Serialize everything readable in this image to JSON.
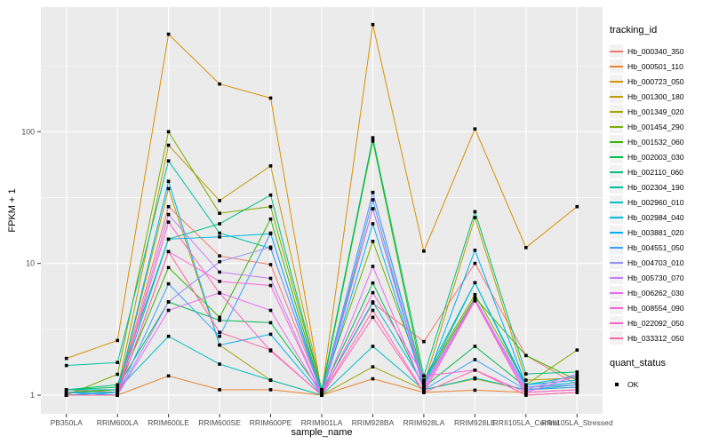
{
  "chart_data": {
    "type": "line",
    "title": "",
    "xlabel": "sample_name",
    "ylabel": "FPKM + 1",
    "yscale": "log10",
    "yticks": [
      1,
      10,
      100
    ],
    "yminor": [
      3.162,
      31.62,
      316.2
    ],
    "ylim": [
      1,
      880
    ],
    "grid": true,
    "panel_bg": "#EBEBEB",
    "grid_color": "#FFFFFF",
    "tick_label_color": "#4D4D4D",
    "tick_mark_color": "#333333",
    "point_shape": "filled-square",
    "point_color": "#000000",
    "legend_title": "tracking_id",
    "legend2_title": "quant_status",
    "legend2_items": [
      "OK"
    ],
    "x_categories": [
      "PB350LA",
      "RRIM600LA",
      "RRIM600LE",
      "RRIM600SE",
      "RRIM600PE",
      "RRIM901LA",
      "RRIM928BA",
      "RRIM928LA",
      "RRIM928LE",
      "RRII105LA_Control",
      "RRII105LA_Stressed"
    ],
    "series": [
      {
        "name": "Hb_000340_350",
        "color": "#F8766D",
        "values": [
          1.1,
          1.05,
          27.0,
          11.4,
          9.8,
          1.05,
          5.0,
          2.55,
          10.0,
          2.0,
          1.2
        ]
      },
      {
        "name": "Hb_000501_110",
        "color": "#EA8331",
        "values": [
          1.05,
          1.0,
          1.4,
          1.1,
          1.1,
          1.0,
          1.33,
          1.05,
          1.09,
          1.05,
          1.1
        ]
      },
      {
        "name": "Hb_000723_050",
        "color": "#D89000",
        "values": [
          1.9,
          2.6,
          550,
          230,
          180,
          1.05,
          650,
          12.4,
          105,
          13.2,
          27.0
        ]
      },
      {
        "name": "Hb_001300_180",
        "color": "#C09B00",
        "values": [
          1.05,
          1.1,
          79,
          30,
          55,
          1.1,
          26,
          1.2,
          22.3,
          1.3,
          1.35
        ]
      },
      {
        "name": "Hb_001349_020",
        "color": "#A3A500",
        "values": [
          1.0,
          1.05,
          37,
          2.4,
          1.3,
          1.0,
          1.64,
          1.1,
          1.33,
          1.1,
          1.15
        ]
      },
      {
        "name": "Hb_001454_290",
        "color": "#7CAE00",
        "values": [
          1.0,
          1.44,
          100,
          24,
          27,
          1.1,
          14.7,
          1.3,
          5.8,
          1.2,
          2.2
        ]
      },
      {
        "name": "Hb_001532_060",
        "color": "#39B600",
        "values": [
          1.05,
          1.1,
          9.3,
          3.9,
          21.7,
          1.05,
          85,
          1.25,
          5.5,
          2.0,
          1.3
        ]
      },
      {
        "name": "Hb_002003_030",
        "color": "#00BB4E",
        "values": [
          1.1,
          1.15,
          5.1,
          3.7,
          3.55,
          1.05,
          7.1,
          1.15,
          2.35,
          1.15,
          1.2
        ]
      },
      {
        "name": "Hb_002110_060",
        "color": "#00BF7D",
        "values": [
          1.1,
          1.2,
          15.3,
          20,
          33,
          1.1,
          90,
          1.4,
          24.7,
          1.45,
          1.5
        ]
      },
      {
        "name": "Hb_002304_190",
        "color": "#00C1A3",
        "values": [
          1.68,
          1.77,
          60,
          17,
          13,
          1.05,
          34.6,
          1.3,
          7.15,
          1.2,
          1.4
        ]
      },
      {
        "name": "Hb_002960_010",
        "color": "#00BFC4",
        "values": [
          1.1,
          1.1,
          2.8,
          1.72,
          1.3,
          1.0,
          2.35,
          1.1,
          1.35,
          1.1,
          1.2
        ]
      },
      {
        "name": "Hb_002984_040",
        "color": "#00BAE0",
        "values": [
          1.05,
          1.05,
          15.3,
          15.9,
          16.8,
          1.05,
          5.1,
          1.2,
          7.15,
          1.15,
          1.25
        ]
      },
      {
        "name": "Hb_003881_020",
        "color": "#00B0F6",
        "values": [
          1.0,
          1.05,
          42,
          2.4,
          2.9,
          1.0,
          20,
          1.15,
          12.6,
          1.2,
          1.3
        ]
      },
      {
        "name": "Hb_004551_050",
        "color": "#35A2FF",
        "values": [
          1.05,
          1.0,
          7.0,
          2.8,
          17,
          1.0,
          30.4,
          1.1,
          1.86,
          1.1,
          1.15
        ]
      },
      {
        "name": "Hb_004703_010",
        "color": "#9590FF",
        "values": [
          1.0,
          1.0,
          5.1,
          10.3,
          13.3,
          1.0,
          34.6,
          1.2,
          5.25,
          1.15,
          1.2
        ]
      },
      {
        "name": "Hb_005730_070",
        "color": "#C77CFF",
        "values": [
          1.0,
          1.0,
          23.5,
          8.6,
          7.7,
          1.0,
          26,
          1.15,
          5.4,
          1.1,
          1.45
        ]
      },
      {
        "name": "Hb_006262_030",
        "color": "#E76BF3",
        "values": [
          1.0,
          1.0,
          4.4,
          6.0,
          4.4,
          1.0,
          9.5,
          1.1,
          5.3,
          1.05,
          1.4
        ]
      },
      {
        "name": "Hb_008554_090",
        "color": "#FA62DB",
        "values": [
          1.0,
          1.0,
          12.3,
          7.3,
          6.8,
          1.0,
          6.0,
          1.4,
          1.55,
          1.05,
          1.1
        ]
      },
      {
        "name": "Hb_022092_050",
        "color": "#FF61C3",
        "values": [
          1.0,
          1.0,
          20.6,
          5.95,
          2.17,
          1.0,
          3.9,
          1.05,
          5.2,
          1.0,
          1.05
        ]
      },
      {
        "name": "Hb_033312_050",
        "color": "#FF67A4",
        "values": [
          1.0,
          1.0,
          12.3,
          3.0,
          2.2,
          1.0,
          4.4,
          1.05,
          1.55,
          1.0,
          1.05
        ]
      }
    ]
  }
}
